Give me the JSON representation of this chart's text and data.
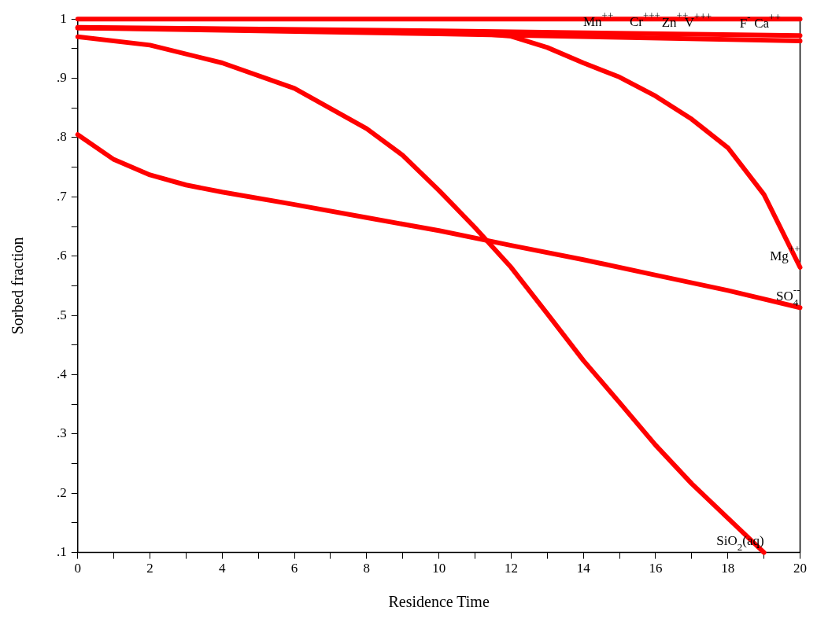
{
  "chart_data": {
    "type": "line",
    "xlabel": "Residence Time",
    "ylabel": "Sorbed fraction",
    "xlim": [
      0,
      20
    ],
    "ylim": [
      0.1,
      1
    ],
    "xticks": [
      0,
      {
        "value": 1,
        "label": null
      },
      2,
      {
        "value": 3,
        "label": null
      },
      4,
      {
        "value": 5,
        "label": null
      },
      6,
      {
        "value": 7,
        "label": null
      },
      8,
      {
        "value": 9,
        "label": null
      },
      10,
      {
        "value": 11,
        "label": null
      },
      12,
      {
        "value": 13,
        "label": null
      },
      14,
      {
        "value": 15,
        "label": null
      },
      16,
      {
        "value": 17,
        "label": null
      },
      18,
      {
        "value": 19,
        "label": null
      },
      20
    ],
    "yticks": [
      {
        "value": 0.1,
        "label": ".1"
      },
      {
        "value": 0.15,
        "label": null
      },
      {
        "value": 0.2,
        "label": ".2"
      },
      {
        "value": 0.25,
        "label": null
      },
      {
        "value": 0.3,
        "label": ".3"
      },
      {
        "value": 0.35,
        "label": null
      },
      {
        "value": 0.4,
        "label": ".4"
      },
      {
        "value": 0.45,
        "label": null
      },
      {
        "value": 0.5,
        "label": ".5"
      },
      {
        "value": 0.55,
        "label": null
      },
      {
        "value": 0.6,
        "label": ".6"
      },
      {
        "value": 0.65,
        "label": null
      },
      {
        "value": 0.7,
        "label": ".7"
      },
      {
        "value": 0.75,
        "label": null
      },
      {
        "value": 0.8,
        "label": ".8"
      },
      {
        "value": 0.85,
        "label": null
      },
      {
        "value": 0.9,
        "label": ".9"
      },
      {
        "value": 0.95,
        "label": null
      },
      1
    ],
    "grid": false,
    "legend": false,
    "marker": "none",
    "line_style": "solid",
    "series": [
      {
        "color": "#ff0000",
        "x": [
          0,
          20
        ],
        "values": [
          1,
          1
        ]
      },
      {
        "color": "#ff0000",
        "x": [
          0,
          10,
          20
        ],
        "values": [
          0.986,
          0.98,
          0.972
        ]
      },
      {
        "color": "#ff0000",
        "x": [
          0,
          10,
          20
        ],
        "values": [
          0.985,
          0.975,
          0.963
        ]
      },
      {
        "color": "#ff0000",
        "x": [
          0,
          4,
          8,
          11,
          12,
          13,
          14,
          15,
          16,
          17,
          18,
          19,
          20
        ],
        "values": [
          0.985,
          0.983,
          0.98,
          0.976,
          0.971,
          0.952,
          0.926,
          0.902,
          0.87,
          0.831,
          0.783,
          0.704,
          0.581
        ]
      },
      {
        "color": "#ff0000",
        "x": [
          0,
          1,
          2,
          3,
          4,
          6,
          8,
          10,
          12,
          14,
          16,
          18,
          20
        ],
        "values": [
          0.805,
          0.763,
          0.737,
          0.72,
          0.708,
          0.687,
          0.665,
          0.643,
          0.618,
          0.594,
          0.568,
          0.542,
          0.513
        ]
      },
      {
        "color": "#ff0000",
        "x": [
          0,
          2,
          4,
          6,
          8,
          9,
          10,
          11,
          12,
          13,
          14,
          15,
          16,
          17,
          18,
          19
        ],
        "values": [
          0.97,
          0.956,
          0.926,
          0.883,
          0.815,
          0.77,
          0.711,
          0.648,
          0.581,
          0.503,
          0.424,
          0.353,
          0.281,
          0.216,
          0.158,
          0.1
        ]
      }
    ],
    "annotations": [
      {
        "text": "Mn$^{++}$",
        "x": 14.83,
        "y": 0.976
      },
      {
        "text": "Cr$^{+++}$",
        "x": 16.13,
        "y": 0.976
      },
      {
        "text": "Zn$^{++}$",
        "x": 16.9,
        "y": 0.975
      },
      {
        "text": "V$^{+++}$",
        "x": 17.55,
        "y": 0.974
      },
      {
        "text": "F$^{-}$",
        "x": 18.63,
        "y": 0.973
      },
      {
        "text": "Ca$^{++}$",
        "x": 19.46,
        "y": 0.973
      },
      {
        "text": "Mg$^{++}$",
        "x": 20,
        "y": 0.581
      },
      {
        "text": "SO$_{4}$$^{--}$",
        "x": 20,
        "y": 0.513
      },
      {
        "text": "SiO$_{2}$(aq)",
        "x": 19,
        "y": 0.1
      }
    ]
  }
}
